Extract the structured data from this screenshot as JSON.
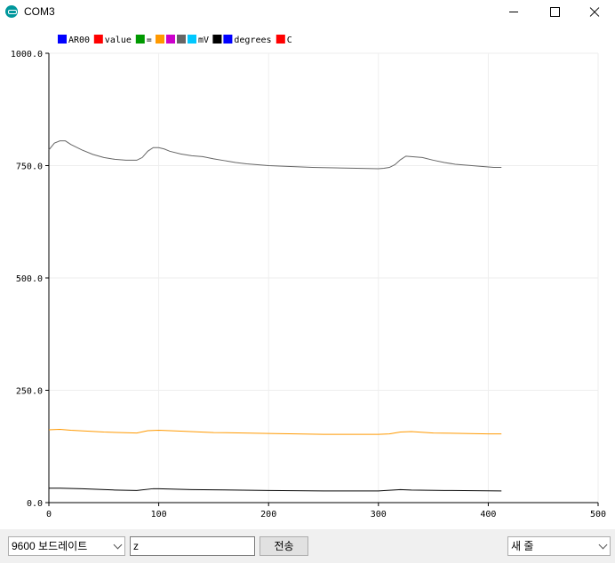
{
  "window": {
    "title": "COM3"
  },
  "legend": [
    {
      "label": "AR00",
      "color": "#0000ff"
    },
    {
      "label": "value",
      "color": "#ff0000"
    },
    {
      "label": "=",
      "color": "#009900"
    },
    {
      "label": "",
      "color": "#ff9900"
    },
    {
      "label": "",
      "color": "#cc00cc"
    },
    {
      "label": "",
      "color": "#666666"
    },
    {
      "label": "mV",
      "color": "#00c8ff"
    },
    {
      "label": "",
      "color": "#000000"
    },
    {
      "label": "degrees",
      "color": "#0000ff"
    },
    {
      "label": "C",
      "color": "#ff0000"
    }
  ],
  "chart_data": {
    "type": "line",
    "xlim": [
      0,
      500
    ],
    "ylim": [
      0,
      1000
    ],
    "x_ticks": [
      "0",
      "100",
      "200",
      "300",
      "400",
      "500"
    ],
    "y_ticks": [
      "0.0",
      "250.0",
      "500.0",
      "750.0",
      "1000.0"
    ],
    "grid": true,
    "legend_position": "top-left",
    "series": [
      {
        "color": "#666666",
        "x": [
          0,
          5,
          10,
          15,
          20,
          30,
          40,
          50,
          60,
          70,
          80,
          85,
          90,
          95,
          100,
          105,
          110,
          120,
          130,
          140,
          150,
          160,
          170,
          180,
          190,
          200,
          220,
          240,
          260,
          280,
          300,
          305,
          310,
          315,
          320,
          325,
          330,
          340,
          350,
          360,
          370,
          380,
          390,
          400,
          405,
          412
        ],
        "y": [
          785,
          800,
          805,
          805,
          797,
          785,
          775,
          768,
          764,
          762,
          762,
          768,
          782,
          790,
          790,
          787,
          782,
          776,
          772,
          770,
          765,
          761,
          757,
          754,
          752,
          750,
          748,
          746,
          745,
          744,
          743,
          744,
          746,
          752,
          763,
          771,
          770,
          768,
          762,
          757,
          753,
          751,
          749,
          747,
          746,
          746
        ]
      },
      {
        "color": "#ff9900",
        "x": [
          0,
          10,
          20,
          50,
          80,
          90,
          100,
          120,
          150,
          200,
          250,
          300,
          310,
          320,
          330,
          350,
          400,
          412
        ],
        "y": [
          162,
          163,
          161,
          157,
          155,
          160,
          161,
          159,
          156,
          154,
          152,
          152,
          153,
          157,
          158,
          155,
          153,
          153
        ]
      },
      {
        "color": "#000000",
        "x": [
          0,
          10,
          30,
          60,
          80,
          95,
          100,
          130,
          200,
          250,
          300,
          320,
          330,
          360,
          412
        ],
        "y": [
          32,
          32,
          31,
          28,
          27,
          31,
          31,
          29,
          27,
          26,
          26,
          29,
          28,
          27,
          26
        ]
      }
    ]
  },
  "footer": {
    "baud_rate": "9600 보드레이트",
    "input_value": "z",
    "send_label": "전송",
    "line_ending": "새 줄"
  }
}
